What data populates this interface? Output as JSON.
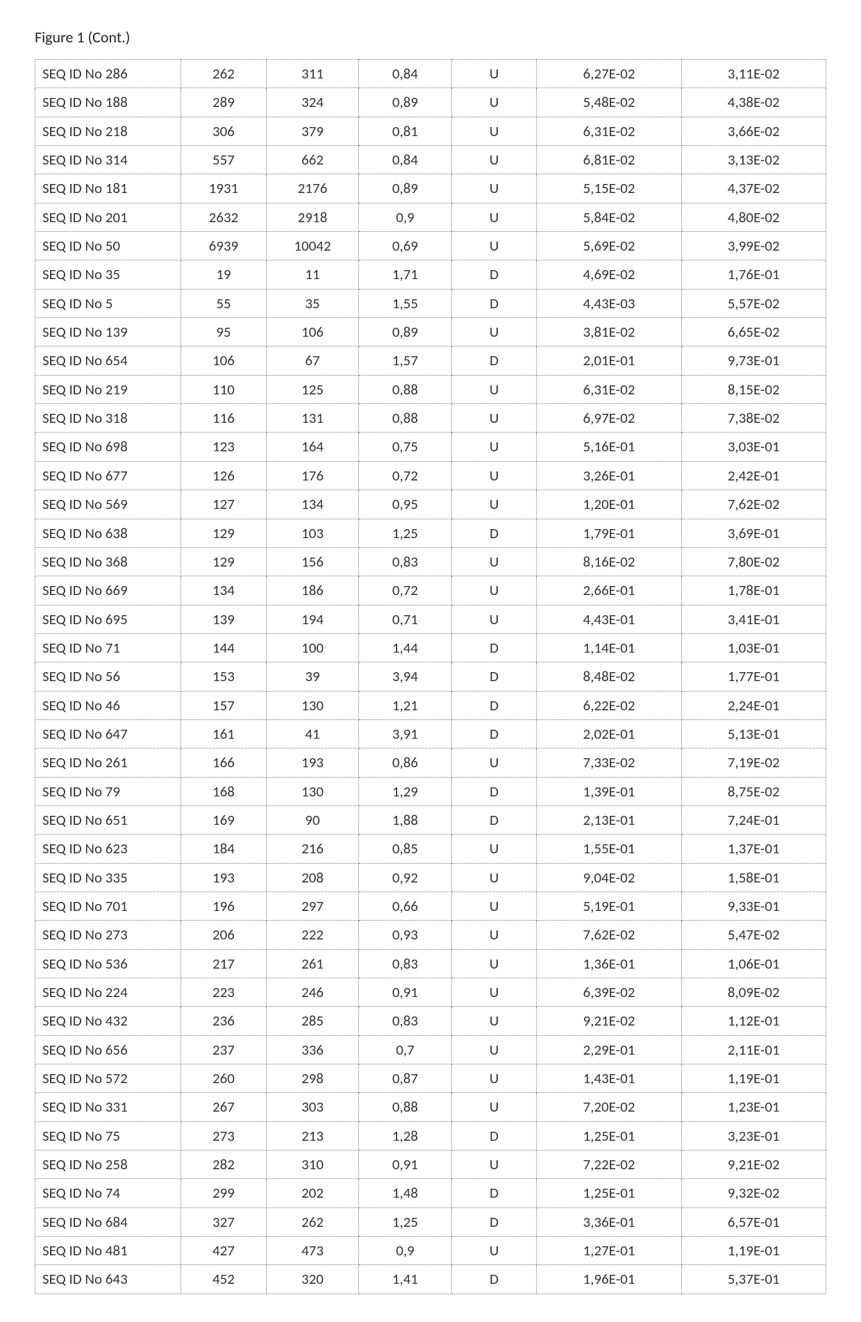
{
  "caption": "Figure 1 (Cont.)",
  "table": {
    "type": "table",
    "background_color": "#ffffff",
    "border_color": "#777777",
    "border_style": "dotted",
    "font_family": "Calibri",
    "cell_fontsize": 21,
    "text_color": "#333333",
    "columns": [
      {
        "align": "left",
        "width_pct": 18
      },
      {
        "align": "center",
        "width_pct": 10
      },
      {
        "align": "center",
        "width_pct": 11
      },
      {
        "align": "center",
        "width_pct": 11
      },
      {
        "align": "center",
        "width_pct": 10
      },
      {
        "align": "center",
        "width_pct": 18
      },
      {
        "align": "center",
        "width_pct": 18
      }
    ],
    "rows": [
      [
        "SEQ ID No 286",
        "262",
        "311",
        "0,84",
        "U",
        "6,27E-02",
        "3,11E-02"
      ],
      [
        "SEQ ID No 188",
        "289",
        "324",
        "0,89",
        "U",
        "5,48E-02",
        "4,38E-02"
      ],
      [
        "SEQ ID No 218",
        "306",
        "379",
        "0,81",
        "U",
        "6,31E-02",
        "3,66E-02"
      ],
      [
        "SEQ ID No 314",
        "557",
        "662",
        "0,84",
        "U",
        "6,81E-02",
        "3,13E-02"
      ],
      [
        "SEQ ID No 181",
        "1931",
        "2176",
        "0,89",
        "U",
        "5,15E-02",
        "4,37E-02"
      ],
      [
        "SEQ ID No 201",
        "2632",
        "2918",
        "0,9",
        "U",
        "5,84E-02",
        "4,80E-02"
      ],
      [
        "SEQ ID No 50",
        "6939",
        "10042",
        "0,69",
        "U",
        "5,69E-02",
        "3,99E-02"
      ],
      [
        "SEQ ID No 35",
        "19",
        "11",
        "1,71",
        "D",
        "4,69E-02",
        "1,76E-01"
      ],
      [
        "SEQ ID No 5",
        "55",
        "35",
        "1,55",
        "D",
        "4,43E-03",
        "5,57E-02"
      ],
      [
        "SEQ ID No 139",
        "95",
        "106",
        "0,89",
        "U",
        "3,81E-02",
        "6,65E-02"
      ],
      [
        "SEQ ID No 654",
        "106",
        "67",
        "1,57",
        "D",
        "2,01E-01",
        "9,73E-01"
      ],
      [
        "SEQ ID No 219",
        "110",
        "125",
        "0,88",
        "U",
        "6,31E-02",
        "8,15E-02"
      ],
      [
        "SEQ ID No 318",
        "116",
        "131",
        "0,88",
        "U",
        "6,97E-02",
        "7,38E-02"
      ],
      [
        "SEQ ID No 698",
        "123",
        "164",
        "0,75",
        "U",
        "5,16E-01",
        "3,03E-01"
      ],
      [
        "SEQ ID No 677",
        "126",
        "176",
        "0,72",
        "U",
        "3,26E-01",
        "2,42E-01"
      ],
      [
        "SEQ ID No 569",
        "127",
        "134",
        "0,95",
        "U",
        "1,20E-01",
        "7,62E-02"
      ],
      [
        "SEQ ID No 638",
        "129",
        "103",
        "1,25",
        "D",
        "1,79E-01",
        "3,69E-01"
      ],
      [
        "SEQ ID No 368",
        "129",
        "156",
        "0,83",
        "U",
        "8,16E-02",
        "7,80E-02"
      ],
      [
        "SEQ ID No 669",
        "134",
        "186",
        "0,72",
        "U",
        "2,66E-01",
        "1,78E-01"
      ],
      [
        "SEQ ID No 695",
        "139",
        "194",
        "0,71",
        "U",
        "4,43E-01",
        "3,41E-01"
      ],
      [
        "SEQ ID No 71",
        "144",
        "100",
        "1,44",
        "D",
        "1,14E-01",
        "1,03E-01"
      ],
      [
        "SEQ ID No 56",
        "153",
        "39",
        "3,94",
        "D",
        "8,48E-02",
        "1,77E-01"
      ],
      [
        "SEQ ID No 46",
        "157",
        "130",
        "1,21",
        "D",
        "6,22E-02",
        "2,24E-01"
      ],
      [
        "SEQ ID No 647",
        "161",
        "41",
        "3,91",
        "D",
        "2,02E-01",
        "5,13E-01"
      ],
      [
        "SEQ ID No 261",
        "166",
        "193",
        "0,86",
        "U",
        "7,33E-02",
        "7,19E-02"
      ],
      [
        "SEQ ID No 79",
        "168",
        "130",
        "1,29",
        "D",
        "1,39E-01",
        "8,75E-02"
      ],
      [
        "SEQ ID No 651",
        "169",
        "90",
        "1,88",
        "D",
        "2,13E-01",
        "7,24E-01"
      ],
      [
        "SEQ ID No 623",
        "184",
        "216",
        "0,85",
        "U",
        "1,55E-01",
        "1,37E-01"
      ],
      [
        "SEQ ID No 335",
        "193",
        "208",
        "0,92",
        "U",
        "9,04E-02",
        "1,58E-01"
      ],
      [
        "SEQ ID No 701",
        "196",
        "297",
        "0,66",
        "U",
        "5,19E-01",
        "9,33E-01"
      ],
      [
        "SEQ ID No 273",
        "206",
        "222",
        "0,93",
        "U",
        "7,62E-02",
        "5,47E-02"
      ],
      [
        "SEQ ID No 536",
        "217",
        "261",
        "0,83",
        "U",
        "1,36E-01",
        "1,06E-01"
      ],
      [
        "SEQ ID No 224",
        "223",
        "246",
        "0,91",
        "U",
        "6,39E-02",
        "8,09E-02"
      ],
      [
        "SEQ ID No 432",
        "236",
        "285",
        "0,83",
        "U",
        "9,21E-02",
        "1,12E-01"
      ],
      [
        "SEQ ID No 656",
        "237",
        "336",
        "0,7",
        "U",
        "2,29E-01",
        "2,11E-01"
      ],
      [
        "SEQ ID No 572",
        "260",
        "298",
        "0,87",
        "U",
        "1,43E-01",
        "1,19E-01"
      ],
      [
        "SEQ ID No 331",
        "267",
        "303",
        "0,88",
        "U",
        "7,20E-02",
        "1,23E-01"
      ],
      [
        "SEQ ID No 75",
        "273",
        "213",
        "1,28",
        "D",
        "1,25E-01",
        "3,23E-01"
      ],
      [
        "SEQ ID No 258",
        "282",
        "310",
        "0,91",
        "U",
        "7,22E-02",
        "9,21E-02"
      ],
      [
        "SEQ ID No 74",
        "299",
        "202",
        "1,48",
        "D",
        "1,25E-01",
        "9,32E-02"
      ],
      [
        "SEQ ID No 684",
        "327",
        "262",
        "1,25",
        "D",
        "3,36E-01",
        "6,57E-01"
      ],
      [
        "SEQ ID No 481",
        "427",
        "473",
        "0,9",
        "U",
        "1,27E-01",
        "1,19E-01"
      ],
      [
        "SEQ ID No 643",
        "452",
        "320",
        "1,41",
        "D",
        "1,96E-01",
        "5,37E-01"
      ]
    ]
  }
}
